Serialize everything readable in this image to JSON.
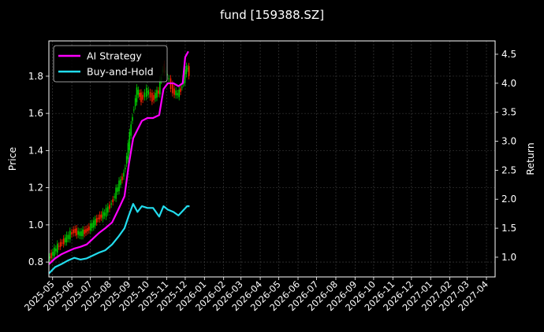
{
  "chart_data": {
    "type": "line",
    "title": "fund [159388.SZ]",
    "ylabel_left": "Price",
    "ylabel_right": "Return",
    "ylim_left": [
      0.72,
      1.99
    ],
    "ylim_right": [
      0.66,
      4.73
    ],
    "xlim": [
      "2025-04-25",
      "2027-04-15"
    ],
    "grid": true,
    "legend_position": "top-left",
    "x_tick_labels": [
      "2025-05",
      "2025-06",
      "2025-07",
      "2025-08",
      "2025-09",
      "2025-10",
      "2025-11",
      "2025-12",
      "2026-01",
      "2026-02",
      "2026-03",
      "2026-04",
      "2026-05",
      "2026-06",
      "2026-07",
      "2026-08",
      "2026-09",
      "2026-10",
      "2026-11",
      "2026-12",
      "2027-01",
      "2027-02",
      "2027-03",
      "2027-04"
    ],
    "y_left_ticks": [
      0.8,
      1.0,
      1.2,
      1.4,
      1.6,
      1.8
    ],
    "y_right_ticks": [
      1.0,
      1.5,
      2.0,
      2.5,
      3.0,
      3.5,
      4.0,
      4.5
    ],
    "price_candles": {
      "colors": {
        "up": "#00cc00",
        "down": "#ff2200"
      },
      "points": [
        [
          "2025-04-25",
          0.82
        ],
        [
          "2025-05-05",
          0.86
        ],
        [
          "2025-05-15",
          0.9
        ],
        [
          "2025-05-25",
          0.93
        ],
        [
          "2025-06-05",
          0.97
        ],
        [
          "2025-06-15",
          0.95
        ],
        [
          "2025-06-25",
          0.97
        ],
        [
          "2025-07-05",
          1.0
        ],
        [
          "2025-07-15",
          1.04
        ],
        [
          "2025-07-25",
          1.06
        ],
        [
          "2025-08-05",
          1.12
        ],
        [
          "2025-08-15",
          1.2
        ],
        [
          "2025-08-25",
          1.28
        ],
        [
          "2025-09-01",
          1.42
        ],
        [
          "2025-09-08",
          1.6
        ],
        [
          "2025-09-15",
          1.72
        ],
        [
          "2025-09-22",
          1.68
        ],
        [
          "2025-10-01",
          1.72
        ],
        [
          "2025-10-10",
          1.68
        ],
        [
          "2025-10-20",
          1.72
        ],
        [
          "2025-10-27",
          1.85
        ],
        [
          "2025-11-03",
          1.8
        ],
        [
          "2025-11-12",
          1.72
        ],
        [
          "2025-11-20",
          1.7
        ],
        [
          "2025-11-27",
          1.75
        ],
        [
          "2025-12-04",
          1.85
        ],
        [
          "2025-12-08",
          1.82
        ]
      ]
    },
    "series": [
      {
        "name": "AI Strategy",
        "color": "#ff00ff",
        "axis": "right",
        "points": [
          [
            "2025-04-25",
            0.88
          ],
          [
            "2025-05-05",
            0.98
          ],
          [
            "2025-05-15",
            1.05
          ],
          [
            "2025-05-25",
            1.1
          ],
          [
            "2025-06-05",
            1.15
          ],
          [
            "2025-06-15",
            1.18
          ],
          [
            "2025-06-25",
            1.22
          ],
          [
            "2025-07-05",
            1.32
          ],
          [
            "2025-07-15",
            1.42
          ],
          [
            "2025-07-25",
            1.5
          ],
          [
            "2025-08-05",
            1.6
          ],
          [
            "2025-08-15",
            1.82
          ],
          [
            "2025-08-25",
            2.05
          ],
          [
            "2025-09-01",
            2.6
          ],
          [
            "2025-09-08",
            3.05
          ],
          [
            "2025-09-15",
            3.2
          ],
          [
            "2025-09-22",
            3.35
          ],
          [
            "2025-10-01",
            3.4
          ],
          [
            "2025-10-10",
            3.4
          ],
          [
            "2025-10-20",
            3.45
          ],
          [
            "2025-10-27",
            3.9
          ],
          [
            "2025-11-03",
            4.0
          ],
          [
            "2025-11-12",
            4.0
          ],
          [
            "2025-11-20",
            3.95
          ],
          [
            "2025-11-27",
            4.0
          ],
          [
            "2025-12-01",
            4.45
          ],
          [
            "2025-12-06",
            4.55
          ]
        ]
      },
      {
        "name": "Buy-and-Hold",
        "color": "#22ddee",
        "axis": "right",
        "points": [
          [
            "2025-04-25",
            0.72
          ],
          [
            "2025-05-05",
            0.83
          ],
          [
            "2025-05-15",
            0.88
          ],
          [
            "2025-05-25",
            0.94
          ],
          [
            "2025-06-05",
            0.99
          ],
          [
            "2025-06-15",
            0.96
          ],
          [
            "2025-06-25",
            0.98
          ],
          [
            "2025-07-05",
            1.03
          ],
          [
            "2025-07-15",
            1.08
          ],
          [
            "2025-07-25",
            1.12
          ],
          [
            "2025-08-05",
            1.22
          ],
          [
            "2025-08-15",
            1.35
          ],
          [
            "2025-08-25",
            1.5
          ],
          [
            "2025-09-01",
            1.72
          ],
          [
            "2025-09-08",
            1.92
          ],
          [
            "2025-09-15",
            1.78
          ],
          [
            "2025-09-22",
            1.88
          ],
          [
            "2025-10-01",
            1.85
          ],
          [
            "2025-10-10",
            1.85
          ],
          [
            "2025-10-20",
            1.7
          ],
          [
            "2025-10-27",
            1.88
          ],
          [
            "2025-11-03",
            1.82
          ],
          [
            "2025-11-12",
            1.78
          ],
          [
            "2025-11-20",
            1.72
          ],
          [
            "2025-11-27",
            1.8
          ],
          [
            "2025-12-04",
            1.88
          ],
          [
            "2025-12-08",
            1.88
          ]
        ]
      }
    ]
  }
}
